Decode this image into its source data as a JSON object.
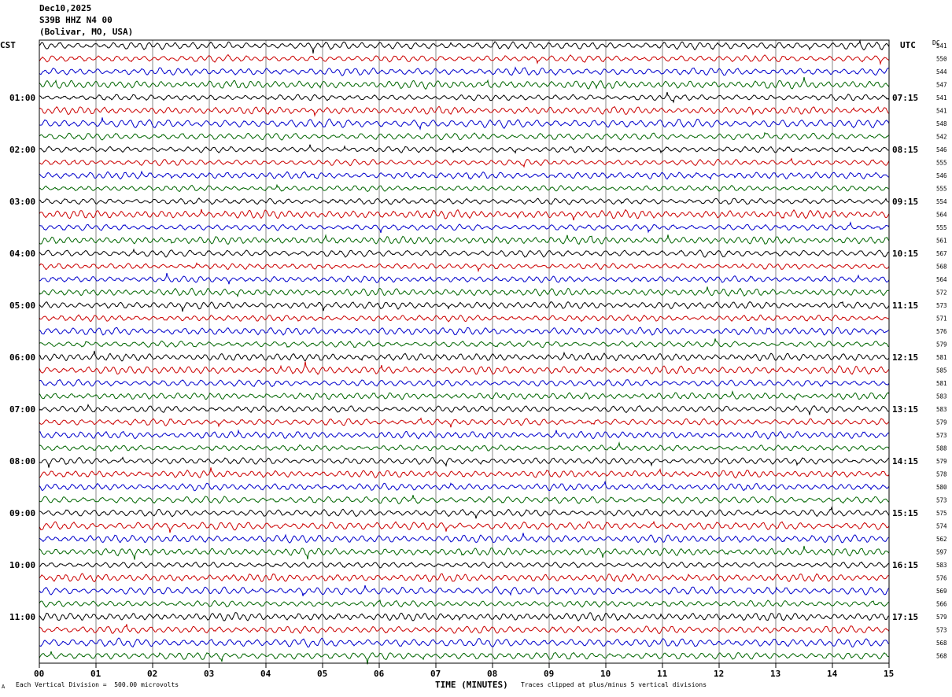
{
  "header": {
    "date": "Dec10,2025",
    "station": "S39B HHZ N4 00",
    "location": "(Bolivar, MO, USA)"
  },
  "labels": {
    "left_zone": "CST",
    "right_zone": "UTC",
    "dc_header": "DC",
    "xlabel": "TIME (MINUTES)",
    "scale_note": "Each Vertical Division =  500.00 microvolts",
    "clip_note": "Traces clipped at plus/minus 5 vertical divisions",
    "corner_mark": "A"
  },
  "chart_data": {
    "type": "line",
    "title": "",
    "xlabel": "TIME (MINUTES)",
    "x_ticks": [
      "00",
      "01",
      "02",
      "03",
      "04",
      "05",
      "06",
      "07",
      "08",
      "09",
      "10",
      "11",
      "12",
      "13",
      "14",
      "15"
    ],
    "xlim": [
      0,
      15
    ],
    "grid": true,
    "trace_colors": [
      "#000000",
      "#cc0000",
      "#0000cc",
      "#006600"
    ],
    "rows": 48,
    "left_hour_labels": [
      "01:00",
      "02:00",
      "03:00",
      "04:00",
      "05:00",
      "06:00",
      "07:00",
      "08:00",
      "09:00",
      "10:00",
      "11:00"
    ],
    "right_hour_labels": [
      "07:15",
      "08:15",
      "09:15",
      "10:15",
      "11:15",
      "12:15",
      "13:15",
      "14:15",
      "15:15",
      "16:15",
      "17:15"
    ],
    "dc_offsets": [
      "541",
      "550",
      "544",
      "547",
      "541",
      "541",
      "548",
      "542",
      "546",
      "555",
      "546",
      "555",
      "554",
      "564",
      "555",
      "561",
      "567",
      "568",
      "564",
      "572",
      "573",
      "571",
      "576",
      "579",
      "581",
      "585",
      "581",
      "583",
      "583",
      "579",
      "573",
      "588",
      "579",
      "578",
      "580",
      "573",
      "575",
      "574",
      "562",
      "597",
      "583",
      "576",
      "569",
      "566",
      "579",
      "573",
      "568",
      "568"
    ]
  }
}
